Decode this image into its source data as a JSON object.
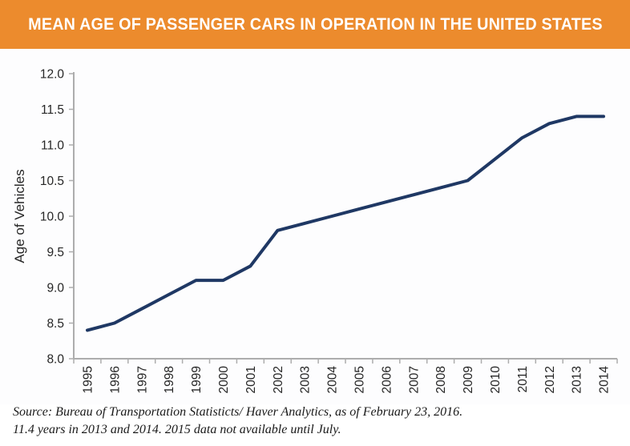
{
  "header": {
    "title": "MEAN AGE OF PASSENGER CARS IN OPERATION IN THE UNITED STATES",
    "background_color": "#EC8B2D",
    "text_color": "#FFFFFF"
  },
  "chart_data": {
    "type": "line",
    "title": "MEAN AGE OF PASSENGER CARS IN OPERATION IN THE UNITED STATES",
    "xlabel": "",
    "ylabel": "Age of Vehicles",
    "categories": [
      "1995",
      "1996",
      "1997",
      "1998",
      "1999",
      "2000",
      "2001",
      "2002",
      "2003",
      "2004",
      "2005",
      "2006",
      "2007",
      "2008",
      "2009",
      "2010",
      "2011",
      "2012",
      "2013",
      "2014"
    ],
    "values": [
      8.4,
      8.5,
      8.7,
      8.9,
      9.1,
      9.1,
      9.3,
      9.8,
      9.9,
      10.0,
      10.1,
      10.2,
      10.3,
      10.4,
      10.5,
      10.8,
      11.1,
      11.3,
      11.4,
      11.4
    ],
    "ylim": [
      8.0,
      12.0
    ],
    "ytick_step": 0.5,
    "grid": false,
    "legend_position": "none",
    "line_color": "#1F3864",
    "axis_color": "#ADADAD",
    "tick_label_color": "#262626"
  },
  "footer": {
    "line1": "Source: Bureau of Transportation Statisticts/ Haver Analytics, as of February 23, 2016.",
    "line2": "11.4 years in 2013 and 2014. 2015 data not available until July."
  }
}
